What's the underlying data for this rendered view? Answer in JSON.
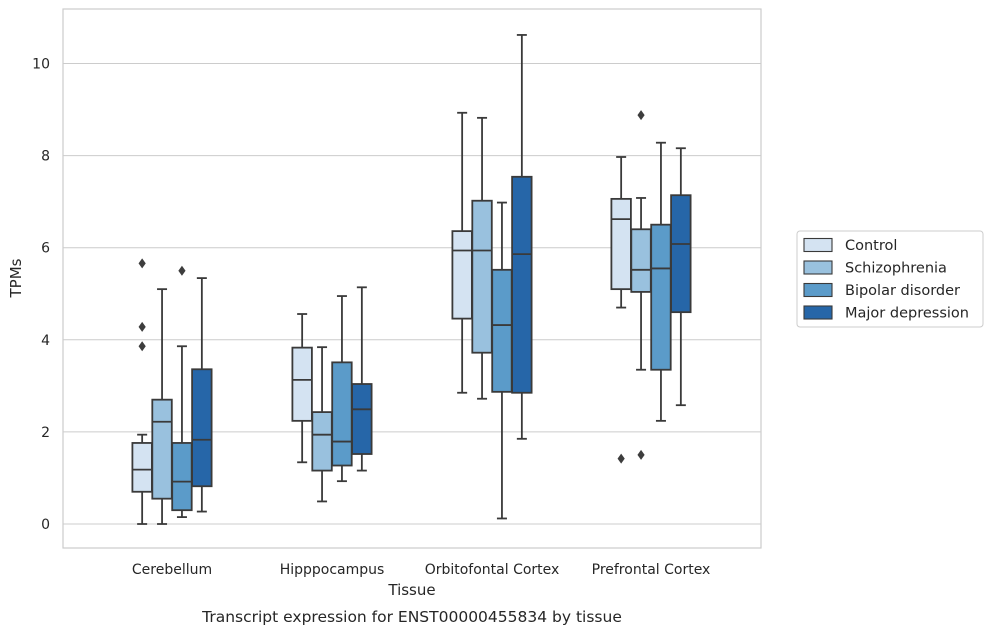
{
  "caption": "Transcript expression for ENST00000455834 by tissue",
  "chart_data": {
    "type": "boxplot",
    "title": "",
    "xlabel": "Tissue",
    "ylabel": "TPMs",
    "ylim": [
      -0.5,
      11.2
    ],
    "yticks": [
      0,
      2,
      4,
      6,
      8,
      10
    ],
    "grid": "horizontal",
    "legend_position": "outside-right",
    "categories": [
      "Cerebellum",
      "Hipppocampus",
      "Orbitofontal Cortex",
      "Prefrontal Cortex"
    ],
    "series": [
      {
        "name": "Control",
        "color": "#d4e3f2",
        "boxes": [
          {
            "whisker_low": 0.0,
            "q1": 0.7,
            "median": 1.18,
            "q3": 1.76,
            "whisker_high": 1.94,
            "outliers": [
              3.86,
              4.28,
              5.66
            ]
          },
          {
            "whisker_low": 1.34,
            "q1": 2.24,
            "median": 3.13,
            "q3": 3.83,
            "whisker_high": 4.56,
            "outliers": []
          },
          {
            "whisker_low": 2.85,
            "q1": 4.46,
            "median": 5.94,
            "q3": 6.36,
            "whisker_high": 8.93,
            "outliers": []
          },
          {
            "whisker_low": 4.7,
            "q1": 5.1,
            "median": 6.62,
            "q3": 7.06,
            "whisker_high": 7.97,
            "outliers": [
              1.42
            ]
          }
        ]
      },
      {
        "name": "Schizophrenia",
        "color": "#99c1de",
        "boxes": [
          {
            "whisker_low": 0.0,
            "q1": 0.55,
            "median": 2.22,
            "q3": 2.7,
            "whisker_high": 5.1,
            "outliers": []
          },
          {
            "whisker_low": 0.49,
            "q1": 1.16,
            "median": 1.94,
            "q3": 2.43,
            "whisker_high": 3.84,
            "outliers": []
          },
          {
            "whisker_low": 2.72,
            "q1": 3.72,
            "median": 5.94,
            "q3": 7.02,
            "whisker_high": 8.82,
            "outliers": []
          },
          {
            "whisker_low": 3.35,
            "q1": 5.04,
            "median": 5.52,
            "q3": 6.4,
            "whisker_high": 7.08,
            "outliers": [
              1.5,
              8.88
            ]
          }
        ]
      },
      {
        "name": "Bipolar disorder",
        "color": "#5b9bc9",
        "boxes": [
          {
            "whisker_low": 0.15,
            "q1": 0.3,
            "median": 0.92,
            "q3": 1.76,
            "whisker_high": 3.86,
            "outliers": [
              5.5
            ]
          },
          {
            "whisker_low": 0.93,
            "q1": 1.27,
            "median": 1.79,
            "q3": 3.51,
            "whisker_high": 4.95,
            "outliers": []
          },
          {
            "whisker_low": 0.12,
            "q1": 2.87,
            "median": 4.32,
            "q3": 5.52,
            "whisker_high": 6.98,
            "outliers": []
          },
          {
            "whisker_low": 2.24,
            "q1": 3.35,
            "median": 5.55,
            "q3": 6.5,
            "whisker_high": 8.28,
            "outliers": []
          }
        ]
      },
      {
        "name": "Major depression",
        "color": "#2666a8",
        "boxes": [
          {
            "whisker_low": 0.27,
            "q1": 0.82,
            "median": 1.83,
            "q3": 3.36,
            "whisker_high": 5.34,
            "outliers": []
          },
          {
            "whisker_low": 1.16,
            "q1": 1.52,
            "median": 2.49,
            "q3": 3.04,
            "whisker_high": 5.14,
            "outliers": []
          },
          {
            "whisker_low": 1.85,
            "q1": 2.85,
            "median": 5.86,
            "q3": 7.54,
            "whisker_high": 10.62,
            "outliers": []
          },
          {
            "whisker_low": 2.58,
            "q1": 4.6,
            "median": 6.08,
            "q3": 7.14,
            "whisker_high": 8.16,
            "outliers": []
          }
        ]
      }
    ]
  }
}
